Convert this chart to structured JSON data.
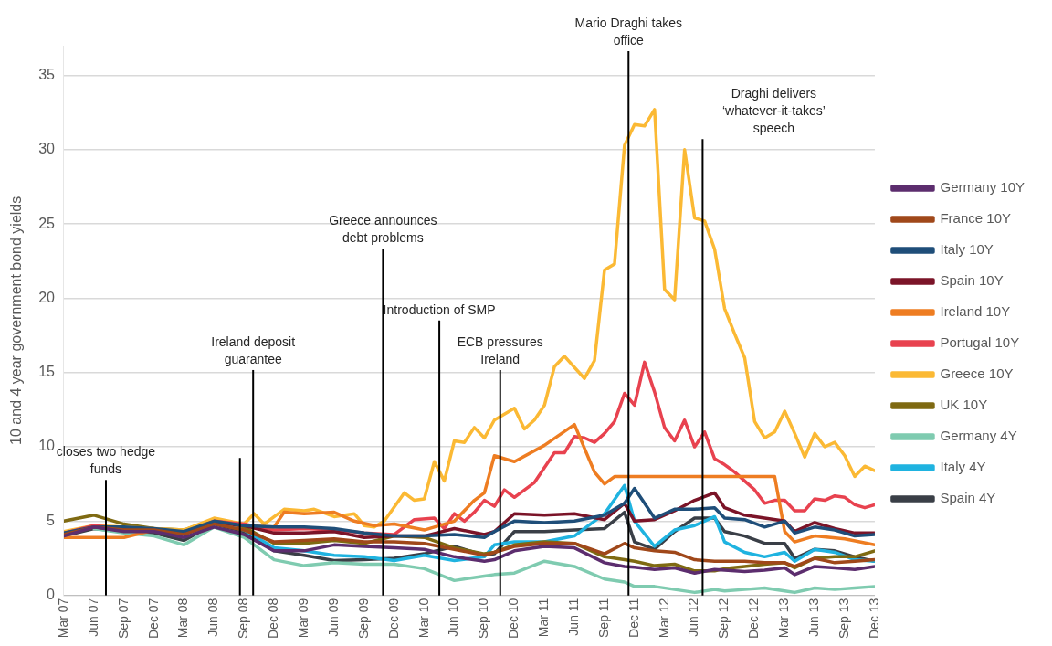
{
  "chart_data": {
    "type": "line",
    "ylabel": "10 and 4 year government bond yields",
    "x": [
      "2007-03",
      "2007-06",
      "2007-09",
      "2007-12",
      "2008-03",
      "2008-06",
      "2008-09",
      "2008-12",
      "2009-03",
      "2009-06",
      "2009-09",
      "2009-12",
      "2010-03",
      "2010-06",
      "2010-09",
      "2010-10",
      "2010-12",
      "2011-03",
      "2011-06",
      "2011-09",
      "2011-11",
      "2011-12",
      "2012-02",
      "2012-04",
      "2012-06",
      "2012-08",
      "2012-09",
      "2012-11",
      "2013-01",
      "2013-03",
      "2013-04",
      "2013-06",
      "2013-08",
      "2013-10",
      "2013-12"
    ],
    "series": [
      {
        "name": "Germany 10Y",
        "color": "#5c2d6e",
        "values": [
          4.0,
          4.6,
          4.3,
          4.3,
          3.9,
          4.6,
          4.1,
          3.0,
          3.0,
          3.4,
          3.3,
          3.2,
          3.1,
          2.6,
          2.3,
          2.4,
          3.0,
          3.3,
          3.2,
          2.2,
          1.95,
          1.9,
          1.75,
          1.85,
          1.5,
          1.75,
          1.7,
          1.6,
          1.7,
          1.85,
          1.4,
          1.95,
          1.85,
          1.75,
          1.95
        ]
      },
      {
        "name": "France 10Y",
        "color": "#a0481a",
        "values": [
          4.1,
          4.6,
          4.4,
          4.4,
          4.1,
          4.8,
          4.4,
          3.6,
          3.7,
          3.8,
          3.6,
          3.6,
          3.5,
          3.1,
          2.7,
          2.9,
          3.3,
          3.5,
          3.5,
          2.8,
          3.5,
          3.2,
          3.0,
          2.9,
          2.4,
          2.3,
          2.3,
          2.3,
          2.2,
          2.2,
          1.95,
          2.5,
          2.2,
          2.3,
          2.4
        ]
      },
      {
        "name": "Italy 10Y",
        "color": "#1f4e79",
        "values": [
          4.2,
          4.6,
          4.6,
          4.5,
          4.3,
          5.0,
          4.7,
          4.6,
          4.6,
          4.5,
          4.2,
          4.0,
          4.0,
          4.1,
          3.9,
          4.3,
          5.0,
          4.9,
          5.0,
          5.4,
          6.2,
          7.2,
          5.2,
          5.8,
          5.8,
          5.9,
          5.2,
          5.1,
          4.6,
          5.0,
          4.2,
          4.6,
          4.4,
          4.0,
          4.1
        ]
      },
      {
        "name": "Spain 10Y",
        "color": "#7b1428",
        "values": [
          4.1,
          4.6,
          4.4,
          4.4,
          4.2,
          4.9,
          4.7,
          4.2,
          4.2,
          4.3,
          3.9,
          4.0,
          4.0,
          4.5,
          4.1,
          4.3,
          5.5,
          5.4,
          5.5,
          5.1,
          6.2,
          5.0,
          5.1,
          5.7,
          6.4,
          6.9,
          5.9,
          5.4,
          5.2,
          5.0,
          4.3,
          4.9,
          4.5,
          4.2,
          4.2
        ]
      },
      {
        "name": "Ireland 10Y",
        "color": "#ee7d22",
        "x": [
          "2007-03",
          "2007-06",
          "2007-09",
          "2007-12",
          "2008-03",
          "2008-06",
          "2008-09",
          "2008-12",
          "2009-01",
          "2009-03",
          "2009-06",
          "2009-08",
          "2009-10",
          "2009-12",
          "2010-03",
          "2010-06",
          "2010-08",
          "2010-09",
          "2010-10",
          "2010-12",
          "2011-03",
          "2011-06",
          "2011-08",
          "2011-09",
          "2011-10",
          "2013-02",
          "2013-03",
          "2013-04",
          "2013-06",
          "2013-09",
          "2013-12"
        ],
        "values": [
          3.9,
          3.9,
          3.9,
          4.4,
          4.2,
          4.9,
          4.7,
          4.6,
          5.6,
          5.5,
          5.6,
          5.0,
          4.7,
          4.8,
          4.4,
          5.0,
          6.4,
          6.9,
          9.4,
          9.0,
          10.1,
          11.5,
          8.3,
          7.5,
          8.0,
          8.0,
          4.3,
          3.6,
          4.0,
          3.8,
          3.4
        ]
      },
      {
        "name": "Portugal 10Y",
        "color": "#e8424f",
        "x": [
          "2007-03",
          "2007-06",
          "2007-09",
          "2007-12",
          "2008-03",
          "2008-06",
          "2008-09",
          "2008-12",
          "2009-03",
          "2009-06",
          "2009-09",
          "2009-12",
          "2010-02",
          "2010-04",
          "2010-05",
          "2010-06",
          "2010-07",
          "2010-08",
          "2010-09",
          "2010-10",
          "2010-11",
          "2010-12",
          "2011-02",
          "2011-03",
          "2011-04",
          "2011-05",
          "2011-06",
          "2011-07",
          "2011-08",
          "2011-09",
          "2011-10",
          "2011-11",
          "2011-12",
          "2012-01",
          "2012-02",
          "2012-03",
          "2012-04",
          "2012-05",
          "2012-06",
          "2012-07",
          "2012-08",
          "2012-09",
          "2012-10",
          "2012-11",
          "2012-12",
          "2013-01",
          "2013-02",
          "2013-03",
          "2013-04",
          "2013-05",
          "2013-06",
          "2013-07",
          "2013-08",
          "2013-09",
          "2013-10",
          "2013-11",
          "2013-12"
        ],
        "values": [
          4.2,
          4.7,
          4.5,
          4.4,
          4.2,
          5.0,
          4.8,
          4.4,
          4.5,
          4.4,
          4.2,
          4.1,
          5.1,
          5.2,
          4.5,
          5.5,
          5.0,
          5.6,
          6.4,
          6.0,
          7.1,
          6.6,
          7.6,
          8.6,
          9.6,
          9.6,
          10.7,
          10.6,
          10.3,
          10.9,
          11.7,
          13.6,
          12.8,
          15.7,
          13.7,
          11.3,
          10.4,
          11.8,
          10.0,
          11.0,
          9.2,
          8.8,
          8.3,
          7.7,
          7.1,
          6.2,
          6.4,
          6.4,
          5.7,
          5.7,
          6.5,
          6.4,
          6.7,
          6.6,
          6.1,
          5.9,
          6.1
        ]
      },
      {
        "name": "Greece 10Y",
        "color": "#fbb934",
        "x": [
          "2007-03",
          "2007-06",
          "2007-09",
          "2007-12",
          "2008-03",
          "2008-06",
          "2008-09",
          "2008-10",
          "2008-11",
          "2009-01",
          "2009-03",
          "2009-04",
          "2009-06",
          "2009-08",
          "2009-09",
          "2009-10",
          "2009-11",
          "2010-01",
          "2010-02",
          "2010-03",
          "2010-04",
          "2010-05",
          "2010-06",
          "2010-07",
          "2010-08",
          "2010-09",
          "2010-10",
          "2010-12",
          "2011-01",
          "2011-02",
          "2011-03",
          "2011-04",
          "2011-05",
          "2011-07",
          "2011-08",
          "2011-09",
          "2011-10",
          "2011-11",
          "2011-12",
          "2012-01",
          "2012-02",
          "2012-03",
          "2012-04",
          "2012-05",
          "2012-06",
          "2012-07",
          "2012-08",
          "2012-09",
          "2012-10",
          "2012-11",
          "2012-12",
          "2013-01",
          "2013-02",
          "2013-03",
          "2013-04",
          "2013-05",
          "2013-06",
          "2013-07",
          "2013-08",
          "2013-09",
          "2013-10",
          "2013-11",
          "2013-12"
        ],
        "values": [
          4.3,
          4.7,
          4.6,
          4.5,
          4.4,
          5.2,
          4.8,
          5.5,
          4.8,
          5.8,
          5.7,
          5.8,
          5.3,
          5.5,
          4.7,
          4.6,
          5.0,
          6.9,
          6.4,
          6.5,
          9.0,
          7.7,
          10.4,
          10.3,
          11.3,
          10.6,
          11.8,
          12.6,
          11.2,
          11.8,
          12.8,
          15.4,
          16.1,
          14.6,
          15.8,
          21.9,
          22.3,
          30.3,
          31.7,
          31.6,
          32.7,
          20.6,
          19.9,
          30.0,
          25.4,
          25.2,
          23.3,
          19.3,
          17.6,
          16.0,
          11.7,
          10.6,
          11.0,
          12.4,
          10.9,
          9.3,
          10.9,
          10.0,
          10.3,
          9.4,
          8.0,
          8.7,
          8.4
        ]
      },
      {
        "name": "UK 10Y",
        "color": "#7f6a12",
        "values": [
          5.0,
          5.4,
          4.8,
          4.5,
          4.4,
          5.1,
          4.6,
          3.5,
          3.5,
          3.7,
          3.5,
          4.0,
          3.9,
          3.2,
          2.8,
          2.9,
          3.4,
          3.6,
          3.5,
          2.6,
          2.4,
          2.3,
          2.0,
          2.1,
          1.65,
          1.65,
          1.8,
          1.95,
          2.1,
          2.2,
          1.85,
          2.5,
          2.6,
          2.6,
          3.0
        ]
      },
      {
        "name": "Germany 4Y",
        "color": "#7fcbb0",
        "values": [
          null,
          4.5,
          4.2,
          4.0,
          3.4,
          4.6,
          3.9,
          2.4,
          2.0,
          2.2,
          2.1,
          2.1,
          1.8,
          1.0,
          1.3,
          1.4,
          1.5,
          2.3,
          1.95,
          1.1,
          0.9,
          0.6,
          0.6,
          0.4,
          0.2,
          0.4,
          0.3,
          0.4,
          0.5,
          0.3,
          0.2,
          0.5,
          0.4,
          0.5,
          0.6
        ]
      },
      {
        "name": "Italy 4Y",
        "color": "#1fb3e0",
        "values": [
          null,
          null,
          null,
          null,
          null,
          4.9,
          4.4,
          3.2,
          3.0,
          2.7,
          2.6,
          2.35,
          2.7,
          2.35,
          2.6,
          3.4,
          3.6,
          3.6,
          4.0,
          5.5,
          7.4,
          5.0,
          3.3,
          4.4,
          4.7,
          5.3,
          3.6,
          2.9,
          2.6,
          2.9,
          2.3,
          3.1,
          2.9,
          2.4,
          2.3
        ]
      },
      {
        "name": "Spain 4Y",
        "color": "#3a3f47",
        "values": [
          4.0,
          4.5,
          4.3,
          4.2,
          3.7,
          4.8,
          4.3,
          3.0,
          2.7,
          2.35,
          2.4,
          2.5,
          2.8,
          3.3,
          2.7,
          2.8,
          4.3,
          4.3,
          4.4,
          4.5,
          5.6,
          3.6,
          3.1,
          4.3,
          5.2,
          5.2,
          4.3,
          4.0,
          3.5,
          3.5,
          2.5,
          3.1,
          3.0,
          2.6,
          2.3
        ]
      }
    ],
    "xlim": [
      "2007-03",
      "2013-12"
    ],
    "xticks": [
      {
        "value": "2007-03",
        "label": "Mar 07"
      },
      {
        "value": "2007-06",
        "label": "Jun 07"
      },
      {
        "value": "2007-09",
        "label": "Sep 07"
      },
      {
        "value": "2007-12",
        "label": "Dec 07"
      },
      {
        "value": "2008-03",
        "label": "Mar 08"
      },
      {
        "value": "2008-06",
        "label": "Jun 08"
      },
      {
        "value": "2008-09",
        "label": "Sep 08"
      },
      {
        "value": "2008-12",
        "label": "Dec 08"
      },
      {
        "value": "2009-03",
        "label": "Mar 09"
      },
      {
        "value": "2009-06",
        "label": "Jun 09"
      },
      {
        "value": "2009-09",
        "label": "Sep 09"
      },
      {
        "value": "2009-12",
        "label": "Dec 09"
      },
      {
        "value": "2010-03",
        "label": "Mar 10"
      },
      {
        "value": "2010-06",
        "label": "Jun 10"
      },
      {
        "value": "2010-09",
        "label": "Sep 10"
      },
      {
        "value": "2010-12",
        "label": "Dec 10"
      },
      {
        "value": "2011-03",
        "label": "Mar 11"
      },
      {
        "value": "2011-06",
        "label": "Jun 11"
      },
      {
        "value": "2011-09",
        "label": "Sep 11"
      },
      {
        "value": "2011-12",
        "label": "Dec 11"
      },
      {
        "value": "2012-03",
        "label": "Mar 12"
      },
      {
        "value": "2012-06",
        "label": "Jun 12"
      },
      {
        "value": "2012-09",
        "label": "Sep 12"
      },
      {
        "value": "2012-12",
        "label": "Dec 12"
      },
      {
        "value": "2013-03",
        "label": "Mar 13"
      },
      {
        "value": "2013-06",
        "label": "Jun 13"
      },
      {
        "value": "2013-09",
        "label": "Sep 13"
      },
      {
        "value": "2013-12",
        "label": "Dec 13"
      }
    ],
    "ylim": [
      0,
      37
    ],
    "yticks": [
      0,
      5,
      10,
      15,
      20,
      25,
      30,
      35
    ],
    "grid": "y",
    "legend": "right",
    "marker": "none",
    "line_style": "solid",
    "ref_lines": [
      {
        "axis": "x",
        "value": "2007-07-07",
        "color": "#000000",
        "label": "closes two hedge funds"
      },
      {
        "axis": "x",
        "value": "2008-09-28",
        "color": "#000000",
        "label": "Ireland deposit guarantee"
      },
      {
        "axis": "x",
        "value": "2009-10-28",
        "color": "#000000",
        "label": "Greece announces debt problems"
      },
      {
        "axis": "x",
        "value": "2010-04-16",
        "color": "#000000",
        "label": "Introduction of SMP"
      },
      {
        "axis": "x",
        "value": "2010-10-19",
        "color": "#000000",
        "label": "ECB pressures Ireland"
      },
      {
        "axis": "x",
        "value": "2011-11-13",
        "color": "#000000",
        "label": "Mario Draghi takes office"
      },
      {
        "axis": "x",
        "value": "2012-06-25",
        "color": "#000000",
        "label": "Draghi delivers ‘whatever-it-takes’ speech"
      },
      {
        "axis": "x",
        "value": "2008-08-19",
        "color": "#000000"
      }
    ]
  }
}
